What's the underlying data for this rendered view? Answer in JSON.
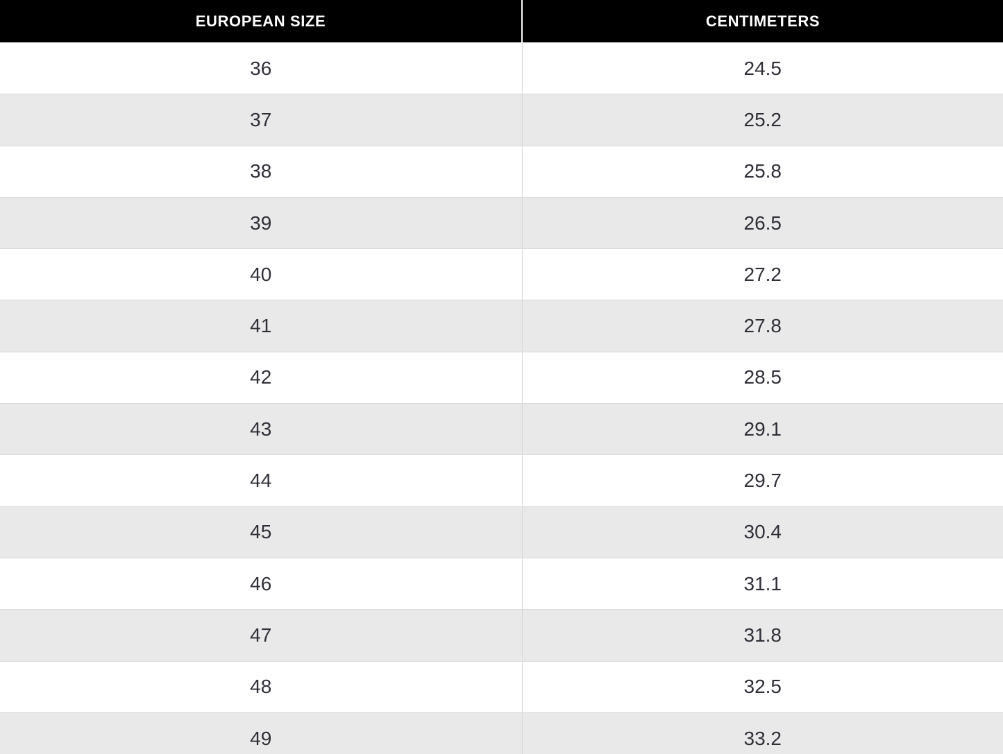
{
  "table": {
    "columns": [
      {
        "label": "EUROPEAN SIZE"
      },
      {
        "label": "CENTIMETERS"
      }
    ],
    "rows": [
      [
        "36",
        "24.5"
      ],
      [
        "37",
        "25.2"
      ],
      [
        "38",
        "25.8"
      ],
      [
        "39",
        "26.5"
      ],
      [
        "40",
        "27.2"
      ],
      [
        "41",
        "27.8"
      ],
      [
        "42",
        "28.5"
      ],
      [
        "43",
        "29.1"
      ],
      [
        "44",
        "29.7"
      ],
      [
        "45",
        "30.4"
      ],
      [
        "46",
        "31.1"
      ],
      [
        "47",
        "31.8"
      ],
      [
        "48",
        "32.5"
      ],
      [
        "49",
        "33.2"
      ]
    ]
  },
  "colors": {
    "header_bg": "#000000",
    "header_text": "#ffffff",
    "row_bg": "#ffffff",
    "row_alt_bg": "#e9e9e9",
    "border": "#d9d9d9",
    "body_text": "#2f2f38"
  },
  "chart_data": {
    "type": "table",
    "columns": [
      "EUROPEAN SIZE",
      "CENTIMETERS"
    ],
    "european_sizes": [
      36,
      37,
      38,
      39,
      40,
      41,
      42,
      43,
      44,
      45,
      46,
      47,
      48,
      49
    ],
    "centimeters": [
      24.5,
      25.2,
      25.8,
      26.5,
      27.2,
      27.8,
      28.5,
      29.1,
      29.7,
      30.4,
      31.1,
      31.8,
      32.5,
      33.2
    ],
    "layout": {
      "striped": true,
      "first_body_row_background": "white",
      "header_style": "black background, white bold uppercase text, centered",
      "cell_alignment": "center"
    }
  }
}
